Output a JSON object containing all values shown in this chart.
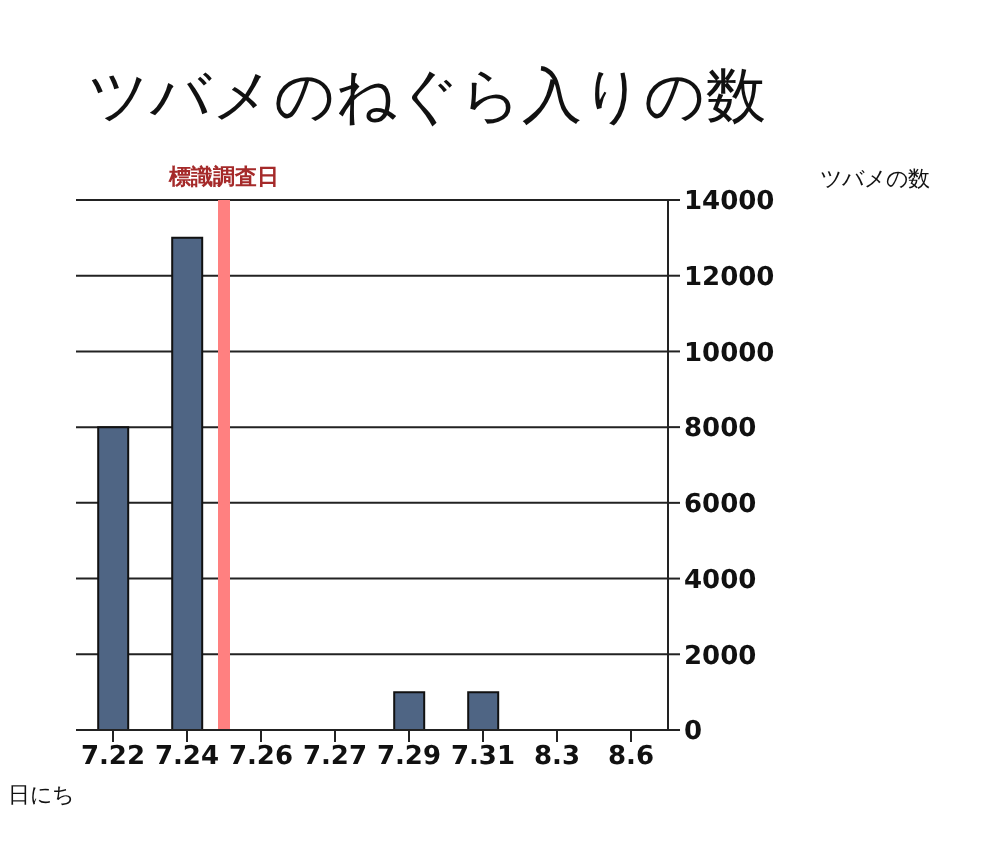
{
  "chart_data": {
    "type": "bar",
    "title": "ツバメのねぐら入りの数",
    "xlabel": "日にち",
    "ylabel": "ツバメの数",
    "categories": [
      "7.22",
      "7.24",
      "7.26",
      "7.27",
      "7.29",
      "7.31",
      "8.3",
      "8.6"
    ],
    "values": [
      8000,
      13000,
      0,
      0,
      1000,
      1000,
      0,
      0
    ],
    "color": "#4f6584",
    "ylim": [
      0,
      14000
    ],
    "yticks": [
      0,
      2000,
      4000,
      6000,
      8000,
      10000,
      12000,
      14000
    ],
    "grid": "y",
    "ref_lines": [
      {
        "axis": "x",
        "value": "7.24",
        "label": "標識調査日",
        "color": "#ff8080"
      }
    ]
  }
}
